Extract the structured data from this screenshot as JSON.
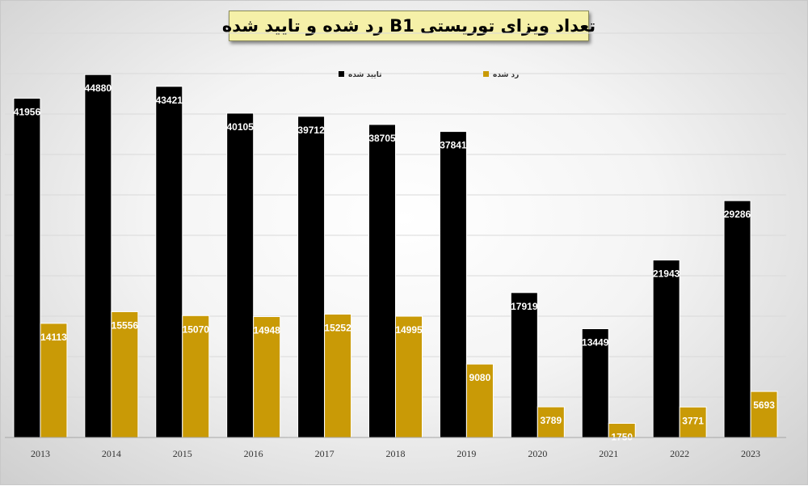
{
  "chart_data": {
    "type": "bar",
    "title": "تعداد ویزای توریستی  B1  رد شده و تایید شده",
    "categories": [
      "2013",
      "2014",
      "2015",
      "2016",
      "2017",
      "2018",
      "2019",
      "2020",
      "2021",
      "2022",
      "2023"
    ],
    "series": [
      {
        "name": "تایید شده",
        "color": "#000000",
        "values": [
          41956,
          44880,
          43421,
          40105,
          39712,
          38705,
          37841,
          17919,
          13449,
          21943,
          29286
        ]
      },
      {
        "name": "رد شده",
        "color": "#c99a06",
        "values": [
          14113,
          15556,
          15070,
          14948,
          15252,
          14995,
          9080,
          3789,
          1750,
          3771,
          5693
        ]
      }
    ],
    "ylim": [
      0,
      50000
    ],
    "grid": true,
    "legend_position": "top",
    "data_labels": true
  }
}
